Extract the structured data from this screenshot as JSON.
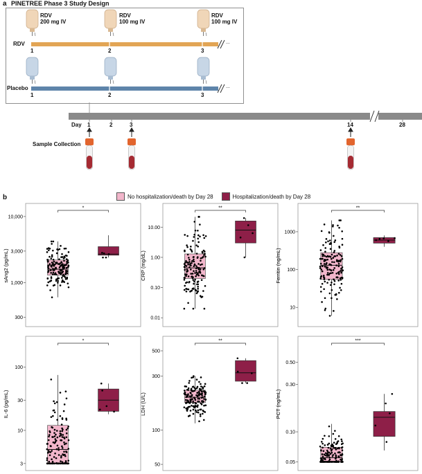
{
  "panel_a": {
    "letter": "a",
    "title": "PINETREE Phase 3 Study Design",
    "arms": [
      {
        "name": "RDV",
        "color": "#e2a555",
        "bag_color": "#f0d6b8",
        "doses": [
          {
            "label": "RDV\n200 mg IV",
            "day": "1"
          },
          {
            "label": "RDV\n100 mg IV",
            "day": "2"
          },
          {
            "label": "RDV\n100 mg IV",
            "day": "3"
          }
        ]
      },
      {
        "name": "Placebo",
        "color": "#5e84aa",
        "bag_color": "#c7d6e6",
        "doses": [
          {
            "label": "",
            "day": "1"
          },
          {
            "label": "",
            "day": "2"
          },
          {
            "label": "",
            "day": "3"
          }
        ]
      }
    ],
    "ellipsis": "...",
    "day_label": "Day",
    "timeline_days": [
      "1",
      "2",
      "3",
      "14",
      "28"
    ],
    "sample_label": "Sample Collection",
    "sample_days": [
      "1",
      "3",
      "14"
    ]
  },
  "panel_b": {
    "letter": "b",
    "legend": [
      {
        "label": "No hospitalization/death by Day 28",
        "color": "#f2b6cb"
      },
      {
        "label": "Hospitalization/death by Day 28",
        "color": "#8e1f48"
      }
    ]
  },
  "chart_data": [
    {
      "type": "box",
      "ylabel": "sAng2 (pg/mL)",
      "scale": "log",
      "ylim": [
        250,
        13000
      ],
      "ticks": [
        300,
        1000,
        3000,
        10000
      ],
      "tick_labels": [
        "300",
        "1,000",
        "3,000",
        "10,000"
      ],
      "significance": "*",
      "groups": [
        {
          "name": "No hospitalization/death by Day 28",
          "q1": 1300,
          "median": 1600,
          "q3": 2200,
          "whisker_low": 600,
          "whisker_high": 4200
        },
        {
          "name": "Hospitalization/death by Day 28",
          "q1": 2600,
          "median": 2700,
          "q3": 3500,
          "whisker_low": 2400,
          "whisker_high": 5200
        }
      ]
    },
    {
      "type": "box",
      "ylabel": "CRP (mg/dL)",
      "scale": "log",
      "ylim": [
        0.007,
        40
      ],
      "ticks": [
        0.01,
        0.1,
        1,
        10
      ],
      "tick_labels": [
        "0.01",
        "0.10",
        "1.00",
        "10.00"
      ],
      "significance": "**",
      "groups": [
        {
          "name": "No hospitalization/death by Day 28",
          "q1": 0.2,
          "median": 0.45,
          "q3": 1.3,
          "whisker_low": 0.02,
          "whisker_high": 22
        },
        {
          "name": "Hospitalization/death by Day 28",
          "q1": 3,
          "median": 8,
          "q3": 16,
          "whisker_low": 1,
          "whisker_high": 20
        }
      ]
    },
    {
      "type": "box",
      "ylabel": "Ferritin (ng/mL)",
      "scale": "log",
      "ylim": [
        4,
        4000
      ],
      "ticks": [
        10,
        100,
        1000
      ],
      "tick_labels": [
        "10",
        "100",
        "1000"
      ],
      "significance": "**",
      "groups": [
        {
          "name": "No hospitalization/death by Day 28",
          "q1": 55,
          "median": 130,
          "q3": 280,
          "whisker_low": 6,
          "whisker_high": 2000
        },
        {
          "name": "Hospitalization/death by Day 28",
          "q1": 500,
          "median": 600,
          "q3": 700,
          "whisker_low": 400,
          "whisker_high": 800
        }
      ]
    },
    {
      "type": "box",
      "ylabel": "IL-6 (pg/mL)",
      "scale": "log",
      "ylim": [
        2.7,
        250
      ],
      "ticks": [
        3,
        10,
        30,
        100
      ],
      "tick_labels": [
        "3",
        "10",
        "30",
        "100"
      ],
      "significance": "*",
      "groups": [
        {
          "name": "No hospitalization/death by Day 28",
          "q1": 3,
          "median": 5,
          "q3": 12,
          "whisker_low": 3,
          "whisker_high": 75
        },
        {
          "name": "Hospitalization/death by Day 28",
          "q1": 20,
          "median": 30,
          "q3": 45,
          "whisker_low": 18,
          "whisker_high": 55
        }
      ]
    },
    {
      "type": "box",
      "ylabel": "LDH (U/L)",
      "scale": "log",
      "ylim": [
        48,
        600
      ],
      "ticks": [
        50,
        100,
        300,
        500
      ],
      "tick_labels": [
        "50",
        "100",
        "300",
        "500"
      ],
      "significance": "**",
      "groups": [
        {
          "name": "No hospitalization/death by Day 28",
          "q1": 175,
          "median": 195,
          "q3": 225,
          "whisker_low": 115,
          "whisker_high": 300
        },
        {
          "name": "Hospitalization/death by Day 28",
          "q1": 270,
          "median": 320,
          "q3": 410,
          "whisker_low": 260,
          "whisker_high": 430
        }
      ]
    },
    {
      "type": "box",
      "ylabel": "PCT (ng/mL)",
      "scale": "log",
      "ylim": [
        0.045,
        0.8
      ],
      "ticks": [
        0.05,
        0.1,
        0.3,
        0.5
      ],
      "tick_labels": [
        "0.05",
        "0.10",
        "0.30",
        "0.50"
      ],
      "significance": "***",
      "groups": [
        {
          "name": "No hospitalization/death by Day 28",
          "q1": 0.05,
          "median": 0.055,
          "q3": 0.07,
          "whisker_low": 0.05,
          "whisker_high": 0.12
        },
        {
          "name": "Hospitalization/death by Day 28",
          "q1": 0.09,
          "median": 0.14,
          "q3": 0.16,
          "whisker_low": 0.065,
          "whisker_high": 0.24
        }
      ]
    }
  ]
}
